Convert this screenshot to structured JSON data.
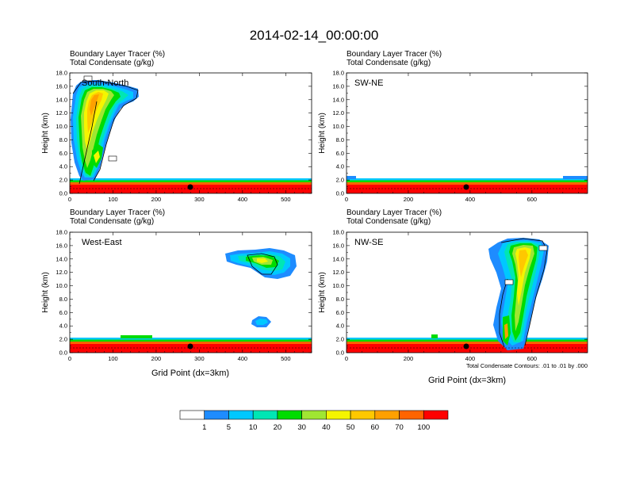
{
  "title": "2014-02-14_00:00:00",
  "panels": [
    {
      "subtitle_line1": "Boundary Layer Tracer   (%)",
      "subtitle_line2": "Total Condensate   (g/kg)",
      "label": "South-North",
      "ylabel": "Height (km)",
      "xlabel": "",
      "x_ticks": [
        0,
        100,
        200,
        300,
        400,
        500
      ],
      "y_ticks": [
        "0.0",
        "2.0",
        "4.0",
        "6.0",
        "8.0",
        "10.0",
        "12.0",
        "14.0",
        "16.0",
        "18.0"
      ]
    },
    {
      "subtitle_line1": "Boundary Layer Tracer   (%)",
      "subtitle_line2": "Total Condensate   (g/kg)",
      "label": "SW-NE",
      "ylabel": "Height (km)",
      "xlabel": "",
      "x_ticks": [
        0,
        200,
        400,
        600
      ],
      "y_ticks": [
        "0.0",
        "2.0",
        "4.0",
        "6.0",
        "8.0",
        "10.0",
        "12.0",
        "14.0",
        "16.0",
        "18.0"
      ]
    },
    {
      "subtitle_line1": "Boundary Layer Tracer   (%)",
      "subtitle_line2": "Total Condensate   (g/kg)",
      "label": "West-East",
      "ylabel": "Height (km)",
      "xlabel": "Grid Point (dx=3km)",
      "x_ticks": [
        0,
        100,
        200,
        300,
        400,
        500
      ],
      "y_ticks": [
        "0.0",
        "2.0",
        "4.0",
        "6.0",
        "8.0",
        "10.0",
        "12.0",
        "14.0",
        "16.0",
        "18.0"
      ]
    },
    {
      "subtitle_line1": "Boundary Layer Tracer   (%)",
      "subtitle_line2": "Total Condensate   (g/kg)",
      "label": "NW-SE",
      "ylabel": "Height (km)",
      "xlabel": "Grid Point (dx=3km)",
      "x_ticks": [
        0,
        200,
        400,
        600
      ],
      "y_ticks": [
        "0.0",
        "2.0",
        "4.0",
        "6.0",
        "8.0",
        "10.0",
        "12.0",
        "14.0",
        "16.0",
        "18.0"
      ],
      "footnote": "Total Condensate Contours: .01 to .01 by .000"
    }
  ],
  "colorbar": {
    "colors": [
      "#ffffff",
      "#1e8cff",
      "#00c8ff",
      "#00e6b4",
      "#00dc00",
      "#a0e632",
      "#f5f500",
      "#ffc800",
      "#ffa000",
      "#ff6400",
      "#ff0000"
    ],
    "labels": [
      "1",
      "5",
      "10",
      "20",
      "30",
      "40",
      "50",
      "60",
      "70",
      "100"
    ]
  },
  "chart_data": [
    {
      "type": "heatmap",
      "label": "South-North",
      "x_range": [
        0,
        560
      ],
      "y_range_km": [
        0,
        18
      ],
      "features": [
        {
          "kind": "boundary_layer",
          "x_range": [
            0,
            560
          ],
          "top_km": 1.5
        },
        {
          "kind": "plume",
          "x_range": [
            0,
            140
          ],
          "z_range_km": [
            0.5,
            16.5
          ]
        }
      ]
    },
    {
      "type": "heatmap",
      "label": "SW-NE",
      "x_range": [
        0,
        780
      ],
      "y_range_km": [
        0,
        18
      ],
      "features": [
        {
          "kind": "boundary_layer",
          "x_range": [
            0,
            780
          ],
          "top_km": 1.5
        }
      ]
    },
    {
      "type": "heatmap",
      "label": "West-East",
      "x_range": [
        0,
        560
      ],
      "y_range_km": [
        0,
        18
      ],
      "features": [
        {
          "kind": "boundary_layer",
          "x_range": [
            0,
            560
          ],
          "top_km": 1.5
        },
        {
          "kind": "cloud",
          "x_range": [
            365,
            525
          ],
          "z_range_km": [
            10.8,
            15.2
          ]
        },
        {
          "kind": "cloud",
          "x_range": [
            425,
            470
          ],
          "z_range_km": [
            3.8,
            5.3
          ]
        }
      ]
    },
    {
      "type": "heatmap",
      "label": "NW-SE",
      "x_range": [
        0,
        780
      ],
      "y_range_km": [
        0,
        18
      ],
      "features": [
        {
          "kind": "boundary_layer",
          "x_range": [
            0,
            780
          ],
          "top_km": 1.5
        },
        {
          "kind": "plume",
          "x_range": [
            505,
            680
          ],
          "z_range_km": [
            0.5,
            17.0
          ]
        }
      ]
    }
  ]
}
